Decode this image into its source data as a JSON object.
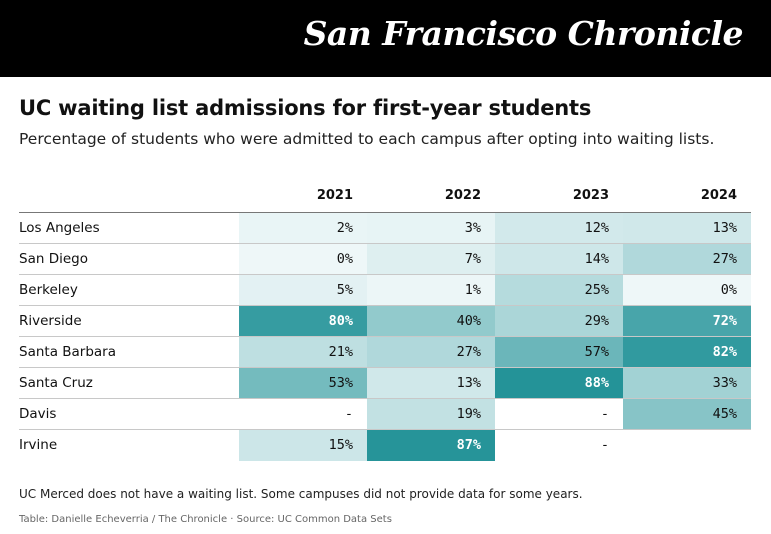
{
  "brand": {
    "logo_text": "San Francisco Chronicle"
  },
  "header": {
    "title": "UC waiting list admissions for first-year students",
    "subtitle": "Percentage of students who were admitted to each campus after opting into waiting lists."
  },
  "footer": {
    "note": "UC Merced does not have a waiting list. Some campuses did not provide data for some years.",
    "credit": "Table: Danielle Echeverria / The Chronicle · Source: UC Common Data Sets"
  },
  "colors": {
    "scale_low": "#eef7f8",
    "scale_high": "#1f9196",
    "masthead": "#000000"
  },
  "chart_data": {
    "type": "table",
    "title": "UC waiting list admissions for first-year students",
    "columns": [
      "",
      "2021",
      "2022",
      "2023",
      "2024"
    ],
    "rows": [
      {
        "campus": "Los Angeles",
        "values": [
          "2%",
          "3%",
          "12%",
          "13%"
        ],
        "numeric": [
          2,
          3,
          12,
          13
        ]
      },
      {
        "campus": "San Diego",
        "values": [
          "0%",
          "7%",
          "14%",
          "27%"
        ],
        "numeric": [
          0,
          7,
          14,
          27
        ]
      },
      {
        "campus": "Berkeley",
        "values": [
          "5%",
          "1%",
          "25%",
          "0%"
        ],
        "numeric": [
          5,
          1,
          25,
          0
        ]
      },
      {
        "campus": "Riverside",
        "values": [
          "80%",
          "40%",
          "29%",
          "72%"
        ],
        "numeric": [
          80,
          40,
          29,
          72
        ]
      },
      {
        "campus": "Santa Barbara",
        "values": [
          "21%",
          "27%",
          "57%",
          "82%"
        ],
        "numeric": [
          21,
          27,
          57,
          82
        ]
      },
      {
        "campus": "Santa Cruz",
        "values": [
          "53%",
          "13%",
          "88%",
          "33%"
        ],
        "numeric": [
          53,
          13,
          88,
          33
        ]
      },
      {
        "campus": "Davis",
        "values": [
          "-",
          "19%",
          "-",
          "45%"
        ],
        "numeric": [
          null,
          19,
          null,
          45
        ]
      },
      {
        "campus": "Irvine",
        "values": [
          "15%",
          "87%",
          "-",
          ""
        ],
        "numeric": [
          15,
          87,
          null,
          null
        ]
      }
    ]
  }
}
